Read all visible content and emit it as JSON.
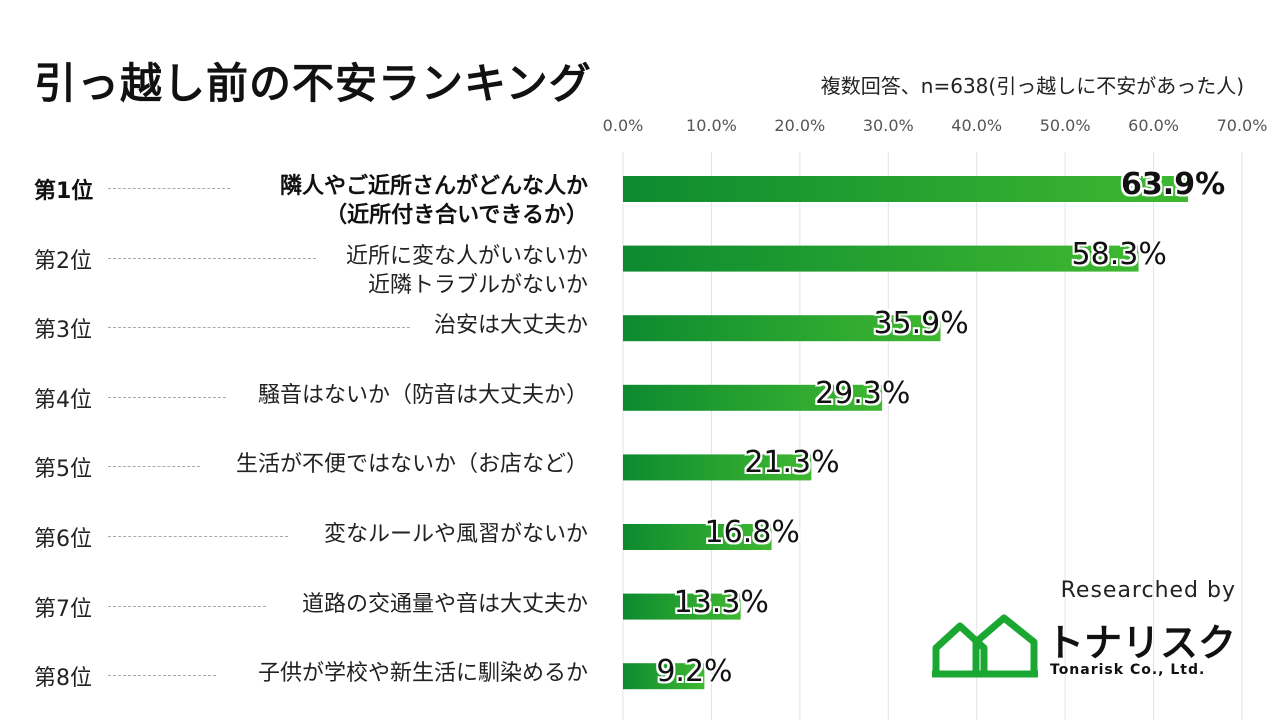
{
  "title": "引っ越し前の不安ランキング",
  "note": "複数回答、n=638(引っ越しに不安があった人)",
  "colors": {
    "bar_start": "#0d8a30",
    "bar_end": "#3fb830",
    "logo_green": "#1aa832"
  },
  "chart_data": {
    "type": "bar",
    "orientation": "horizontal",
    "title": "引っ越し前の不安ランキング",
    "xlim": [
      0,
      70
    ],
    "ticks": [
      "0.0%",
      "10.0%",
      "20.0%",
      "30.0%",
      "40.0%",
      "50.0%",
      "60.0%",
      "70.0%"
    ],
    "grid": true,
    "items": [
      {
        "rank": "第1位",
        "lines": [
          "隣人やご近所さんがどんな人か",
          "（近所付き合いできるか）"
        ],
        "value": 63.9,
        "label": "63.9%"
      },
      {
        "rank": "第2位",
        "lines": [
          "近所に変な人がいないか",
          "近隣トラブルがないか"
        ],
        "value": 58.3,
        "label": "58.3%"
      },
      {
        "rank": "第3位",
        "lines": [
          "治安は大丈夫か"
        ],
        "value": 35.9,
        "label": "35.9%"
      },
      {
        "rank": "第4位",
        "lines": [
          "騒音はないか（防音は大丈夫か）"
        ],
        "value": 29.3,
        "label": "29.3%"
      },
      {
        "rank": "第5位",
        "lines": [
          "生活が不便ではないか（お店など）"
        ],
        "value": 21.3,
        "label": "21.3%"
      },
      {
        "rank": "第6位",
        "lines": [
          "変なルールや風習がないか"
        ],
        "value": 16.8,
        "label": "16.8%"
      },
      {
        "rank": "第7位",
        "lines": [
          "道路の交通量や音は大丈夫か"
        ],
        "value": 13.3,
        "label": "13.3%"
      },
      {
        "rank": "第8位",
        "lines": [
          "子供が学校や新生活に馴染めるか"
        ],
        "value": 9.2,
        "label": "9.2%"
      }
    ]
  },
  "credit": {
    "researched_by": "Researched by",
    "logo_name": "トナリスク",
    "logo_sub": "Tonarisk Co., Ltd.",
    "logo_icon": "house-outline-icon"
  }
}
